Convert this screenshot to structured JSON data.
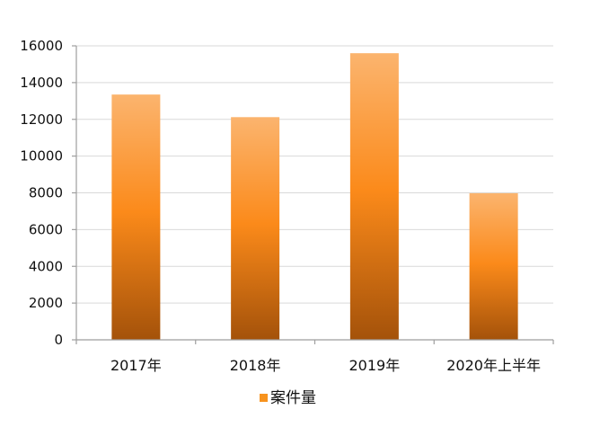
{
  "chart_data": {
    "type": "bar",
    "title": "",
    "xlabel": "",
    "ylabel": "",
    "categories": [
      "2017年",
      "2018年",
      "2019年",
      "2020年上半年"
    ],
    "series": [
      {
        "name": "案件量",
        "values": [
          13350,
          12120,
          15600,
          7980
        ]
      }
    ],
    "ylim": [
      0,
      16000
    ],
    "yticks": [
      0,
      2000,
      4000,
      6000,
      8000,
      10000,
      12000,
      14000,
      16000
    ],
    "grid": true,
    "legend_position": "bottom",
    "colors": {
      "bar_top": "#fbb46e",
      "bar_mid": "#fb8a1a",
      "bar_bottom": "#a4520a",
      "legend_swatch": "#f7931e"
    }
  }
}
